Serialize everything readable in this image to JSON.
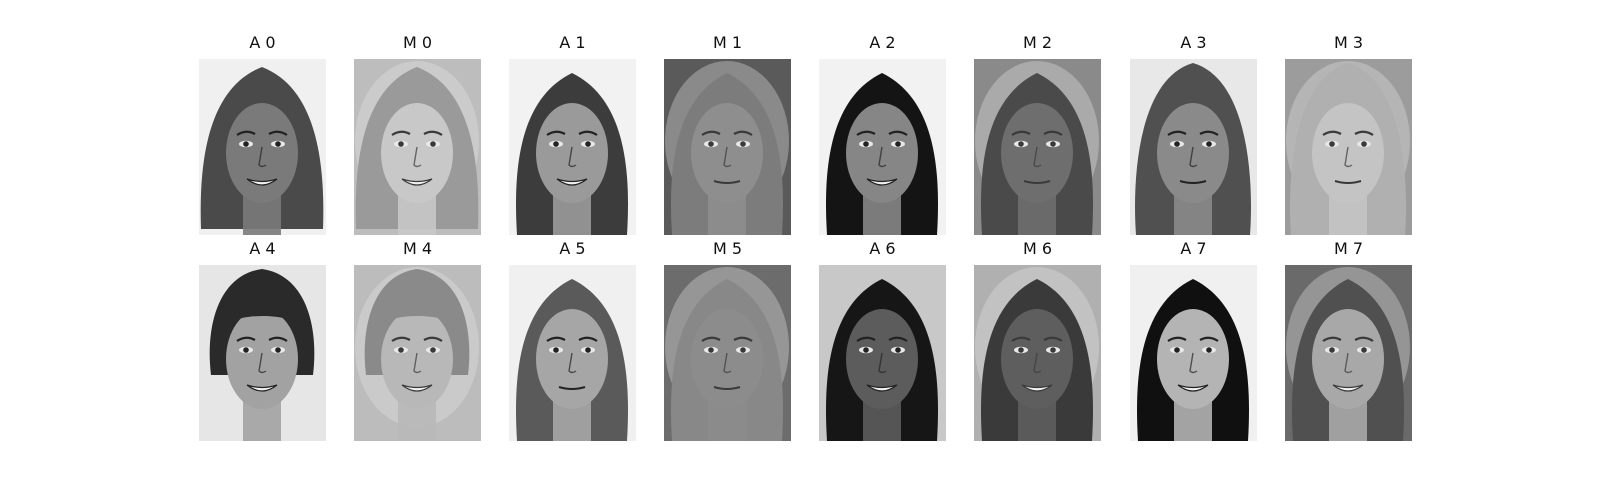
{
  "figure": {
    "panels": [
      {
        "label": "A 0",
        "kind": "original",
        "bg": "#f0f0f0",
        "hair": "#4a4a4a",
        "skin": "#7a7a7a",
        "style": "curly"
      },
      {
        "label": "M 0",
        "kind": "morph",
        "bg": "#bdbdbd",
        "hair": "#9a9a9a",
        "skin": "#c8c8c8",
        "style": "curly"
      },
      {
        "label": "A 1",
        "kind": "original",
        "bg": "#f2f2f2",
        "hair": "#3c3c3c",
        "skin": "#9a9a9a",
        "style": "long"
      },
      {
        "label": "M 1",
        "kind": "morph",
        "bg": "#5a5a5a",
        "hair": "#7c7c7c",
        "skin": "#8e8e8e",
        "style": "long"
      },
      {
        "label": "A 2",
        "kind": "original",
        "bg": "#f2f2f2",
        "hair": "#141414",
        "skin": "#868686",
        "style": "long"
      },
      {
        "label": "M 2",
        "kind": "morph",
        "bg": "#8a8a8a",
        "hair": "#4a4a4a",
        "skin": "#6e6e6e",
        "style": "long"
      },
      {
        "label": "A 3",
        "kind": "original",
        "bg": "#e8e8e8",
        "hair": "#505050",
        "skin": "#8a8a8a",
        "style": "medium"
      },
      {
        "label": "M 3",
        "kind": "morph",
        "bg": "#9c9c9c",
        "hair": "#b0b0b0",
        "skin": "#c4c4c4",
        "style": "medium"
      },
      {
        "label": "A 4",
        "kind": "original",
        "bg": "#e6e6e6",
        "hair": "#2a2a2a",
        "skin": "#a2a2a2",
        "style": "short"
      },
      {
        "label": "M 4",
        "kind": "morph",
        "bg": "#bcbcbc",
        "hair": "#8a8a8a",
        "skin": "#b8b8b8",
        "style": "short"
      },
      {
        "label": "A 5",
        "kind": "original",
        "bg": "#f0f0f0",
        "hair": "#5a5a5a",
        "skin": "#a6a6a6",
        "style": "long"
      },
      {
        "label": "M 5",
        "kind": "morph",
        "bg": "#6c6c6c",
        "hair": "#888888",
        "skin": "#8c8c8c",
        "style": "long"
      },
      {
        "label": "A 6",
        "kind": "original",
        "bg": "#c8c8c8",
        "hair": "#161616",
        "skin": "#5c5c5c",
        "style": "long"
      },
      {
        "label": "M 6",
        "kind": "morph",
        "bg": "#b0b0b0",
        "hair": "#3a3a3a",
        "skin": "#5e5e5e",
        "style": "long"
      },
      {
        "label": "A 7",
        "kind": "original",
        "bg": "#f0f0f0",
        "hair": "#101010",
        "skin": "#b4b4b4",
        "style": "long"
      },
      {
        "label": "M 7",
        "kind": "morph",
        "bg": "#6a6a6a",
        "hair": "#505050",
        "skin": "#a8a8a8",
        "style": "long"
      }
    ]
  }
}
